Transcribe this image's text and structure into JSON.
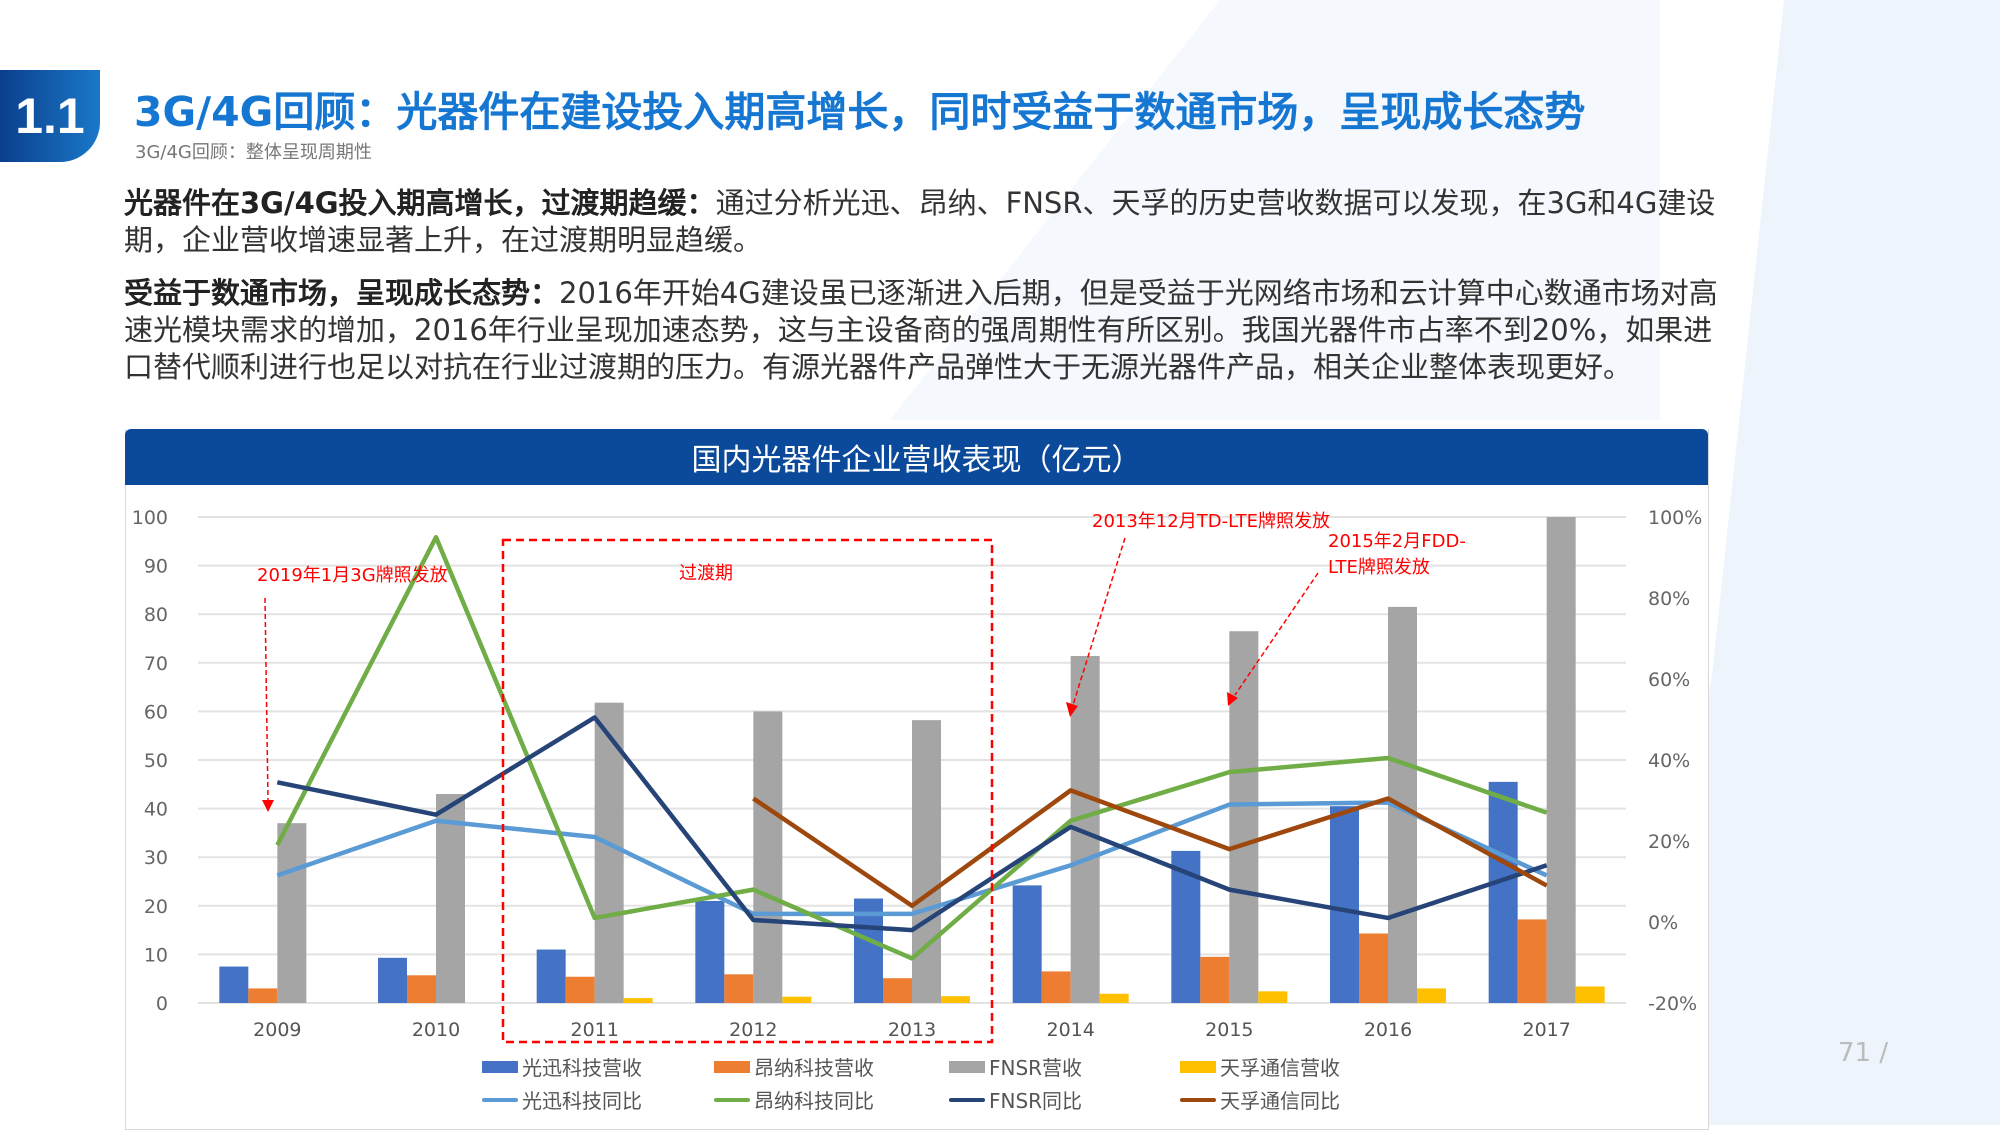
{
  "header": {
    "section_number": "1.1",
    "title": "3G/4G回顾：光器件在建设投入期高增长，同时受益于数通市场，呈现成长态势",
    "subtitle": "3G/4G回顾：整体呈现周期性"
  },
  "body": {
    "p1_bold": "光器件在3G/4G投入期高增长，过渡期趋缓：",
    "p1_text": "通过分析光迅、昂纳、FNSR、天孚的历史营收数据可以发现，在3G和4G建设期，企业营收增速显著上升，在过渡期明显趋缓。",
    "p2_bold": "受益于数通市场，呈现成长态势：",
    "p2_text": "2016年开始4G建设虽已逐渐进入后期，但是受益于光网络市场和云计算中心数通市场对高速光模块需求的增加，2016年行业呈现加速态势，这与主设备商的强周期性有所区别。我国光器件市占率不到20%，如果进口替代顺利进行也足以对抗在行业过渡期的压力。有源光器件产品弹性大于无源光器件产品，相关企业整体表现更好。"
  },
  "page_number": "71 /",
  "chart_data": {
    "type": "bar+line",
    "title": "国内光器件企业营收表现（亿元）",
    "categories": [
      "2009",
      "2010",
      "2011",
      "2012",
      "2013",
      "2014",
      "2015",
      "2016",
      "2017"
    ],
    "y_left": {
      "ylim": [
        0,
        100
      ],
      "ticks": [
        "0",
        "10",
        "20",
        "30",
        "40",
        "50",
        "60",
        "70",
        "80",
        "90",
        "100"
      ]
    },
    "y_right": {
      "ylim": [
        -20,
        100
      ],
      "ticks": [
        "-20%",
        "0%",
        "20%",
        "40%",
        "60%",
        "80%",
        "100%"
      ]
    },
    "grid": true,
    "legend_position": "bottom",
    "bar_series": [
      {
        "name": "光迅科技营收",
        "color": "#4472c4",
        "values": [
          7.5,
          9.3,
          11,
          21,
          21.5,
          24.2,
          31.3,
          40.5,
          45.5
        ]
      },
      {
        "name": "昂纳科技营收",
        "color": "#ed7d31",
        "values": [
          3,
          5.7,
          5.4,
          5.9,
          5.1,
          6.5,
          9.5,
          14.3,
          17.2
        ]
      },
      {
        "name": "FNSR营收",
        "color": "#a5a5a5",
        "values": [
          37,
          43,
          61.8,
          60,
          58.2,
          71.4,
          76.5,
          81.5,
          100
        ]
      },
      {
        "name": "天孚通信营收",
        "color": "#ffc000",
        "values": [
          null,
          null,
          1.0,
          1.3,
          1.4,
          1.9,
          2.4,
          3.0,
          3.4
        ]
      }
    ],
    "line_series": [
      {
        "name": "光迅科技同比",
        "color": "#5b9bd5",
        "values": [
          11.5,
          25,
          21,
          2,
          2,
          14,
          29,
          29.5,
          11.5
        ]
      },
      {
        "name": "昂纳科技同比",
        "color": "#70ad47",
        "values": [
          19,
          95,
          1,
          8,
          -9,
          25,
          37,
          40.5,
          27
        ]
      },
      {
        "name": "FNSR同比",
        "color": "#264478",
        "values": [
          34.5,
          26.5,
          50.5,
          0.5,
          -2,
          23.5,
          8,
          1,
          14
        ]
      },
      {
        "name": "天孚通信同比",
        "color": "#9e480e",
        "values": [
          null,
          null,
          null,
          30.5,
          4,
          32.5,
          18,
          30.5,
          9
        ]
      }
    ],
    "annotations": {
      "a1": "2019年1月3G牌照发放",
      "a2": "过渡期",
      "a3": "2013年12月TD-LTE牌照发放",
      "a4_line1": "2015年2月FDD-",
      "a4_line2": "LTE牌照发放"
    }
  }
}
